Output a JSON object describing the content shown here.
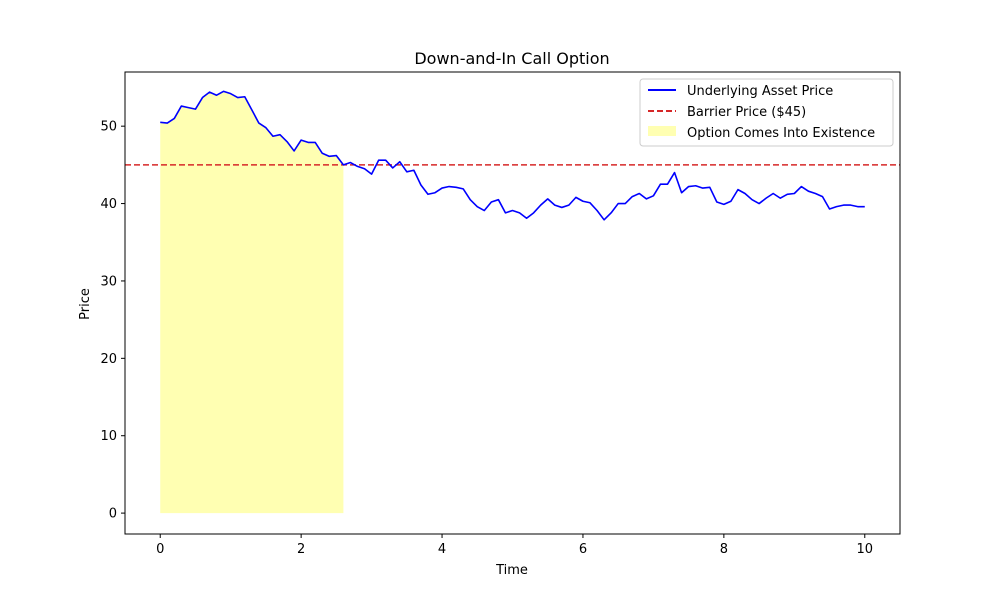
{
  "chart_data": {
    "type": "line",
    "title": "Down-and-In Call Option",
    "xlabel": "Time",
    "ylabel": "Price",
    "xlim": [
      -0.5,
      10.5
    ],
    "ylim": [
      -2.7,
      57.0
    ],
    "xticks": [
      "0",
      "2",
      "4",
      "6",
      "8",
      "10"
    ],
    "yticks": [
      "0",
      "10",
      "20",
      "30",
      "40",
      "50"
    ],
    "grid": false,
    "legend_position": "top-right",
    "series": [
      {
        "name": "Underlying Asset Price",
        "color": "#0000ff",
        "style": "solid",
        "x": [
          0.0,
          0.1,
          0.2,
          0.3,
          0.4,
          0.5,
          0.6,
          0.7,
          0.8,
          0.9,
          1.0,
          1.1,
          1.2,
          1.3,
          1.4,
          1.5,
          1.6,
          1.7,
          1.8,
          1.9,
          2.0,
          2.1,
          2.2,
          2.3,
          2.4,
          2.5,
          2.6,
          2.7,
          2.8,
          2.9,
          3.0,
          3.1,
          3.2,
          3.3,
          3.4,
          3.5,
          3.6,
          3.7,
          3.8,
          3.9,
          4.0,
          4.1,
          4.2,
          4.3,
          4.4,
          4.5,
          4.6,
          4.7,
          4.8,
          4.9,
          5.0,
          5.1,
          5.2,
          5.3,
          5.4,
          5.5,
          5.6,
          5.7,
          5.8,
          5.9,
          6.0,
          6.1,
          6.2,
          6.3,
          6.4,
          6.5,
          6.6,
          6.7,
          6.8,
          6.9,
          7.0,
          7.1,
          7.2,
          7.3,
          7.4,
          7.5,
          7.6,
          7.7,
          7.8,
          7.9,
          8.0,
          8.1,
          8.2,
          8.3,
          8.4,
          8.5,
          8.6,
          8.7,
          8.8,
          8.9,
          9.0,
          9.1,
          9.2,
          9.3,
          9.4,
          9.5,
          9.6,
          9.7,
          9.8,
          9.9,
          10.0
        ],
        "values": [
          50.5,
          50.4,
          51.0,
          52.6,
          52.4,
          52.2,
          53.7,
          54.4,
          54.0,
          54.5,
          54.2,
          53.7,
          53.8,
          52.1,
          50.4,
          49.8,
          48.7,
          48.9,
          48.0,
          46.8,
          48.2,
          47.9,
          47.9,
          46.5,
          46.1,
          46.2,
          45.0,
          45.3,
          44.8,
          44.5,
          43.8,
          45.6,
          45.6,
          44.6,
          45.4,
          44.1,
          44.3,
          42.4,
          41.2,
          41.4,
          42.0,
          42.2,
          42.1,
          41.9,
          40.5,
          39.6,
          39.1,
          40.2,
          40.5,
          38.8,
          39.1,
          38.8,
          38.1,
          38.8,
          39.8,
          40.6,
          39.8,
          39.5,
          39.8,
          40.8,
          40.3,
          40.1,
          39.1,
          37.9,
          38.8,
          40.0,
          40.0,
          40.9,
          41.3,
          40.6,
          41.0,
          42.5,
          42.5,
          44.0,
          41.4,
          42.2,
          42.3,
          42.0,
          42.1,
          40.2,
          39.9,
          40.3,
          41.8,
          41.3,
          40.5,
          40.0,
          40.7,
          41.3,
          40.7,
          41.2,
          41.3,
          42.2,
          41.6,
          41.3,
          40.9,
          39.3,
          39.6,
          39.8,
          39.8,
          39.6,
          39.6
        ]
      },
      {
        "name": "Barrier Price ($45)",
        "color": "#d62728",
        "style": "dashed",
        "value": 45
      },
      {
        "name": "Option Comes Into Existence",
        "color": "#ffff00",
        "style": "fill",
        "x_range": [
          0.0,
          2.6
        ]
      }
    ]
  }
}
